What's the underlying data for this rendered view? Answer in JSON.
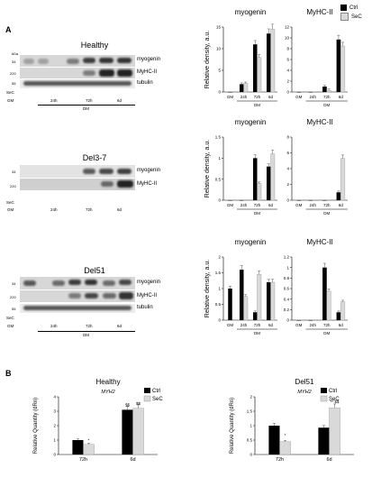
{
  "panel_a_label": "A",
  "panel_b_label": "B",
  "legend": {
    "ctrl": "Ctrl",
    "sec": "SeC"
  },
  "blots": [
    {
      "title": "Healthy",
      "kda": "kDa",
      "markers": [
        "34",
        "220",
        "55"
      ],
      "bands": [
        "myogenin",
        "MyHC-II",
        "tubulin"
      ],
      "sec_label": "SeC",
      "gm": "GM",
      "times": [
        "24h",
        "72h",
        "6d"
      ],
      "dm": "DM"
    },
    {
      "title": "Del3-7",
      "markers": [
        "34",
        "220"
      ],
      "bands": [
        "myogenin",
        "MyHC-II"
      ],
      "sec_label": "SeC",
      "gm": "GM",
      "times": [
        "24h",
        "72h",
        "6d"
      ]
    },
    {
      "title": "Del51",
      "markers": [
        "34",
        "220",
        "55"
      ],
      "bands": [
        "myogenin",
        "MyHC-II",
        "tubulin"
      ],
      "sec_label": "SeC",
      "gm": "GM",
      "times": [
        "24h",
        "72h",
        "6d"
      ],
      "dm": "DM"
    }
  ],
  "chart_data": [
    {
      "type": "bar",
      "title": "myogenin",
      "ylabel": "Relative density, a.u.",
      "ylim": [
        0,
        15
      ],
      "yticks": [
        "0",
        "5",
        "10",
        "15"
      ],
      "categories": [
        "GM",
        "24h",
        "72h",
        "6d"
      ],
      "xgroup": "DM",
      "series": [
        {
          "name": "Ctrl",
          "values": [
            0,
            1.8,
            11,
            13.5
          ]
        },
        {
          "name": "SeC",
          "values": [
            null,
            2,
            8,
            14.5
          ]
        }
      ]
    },
    {
      "type": "bar",
      "title": "MyHC-II",
      "ylim": [
        0,
        12
      ],
      "yticks": [
        "0",
        "2",
        "4",
        "6",
        "8",
        "10",
        "12"
      ],
      "categories": [
        "GM",
        "24h",
        "72h",
        "6d"
      ],
      "xgroup": "DM",
      "series": [
        {
          "name": "Ctrl",
          "values": [
            0,
            0,
            1,
            9.7
          ]
        },
        {
          "name": "SeC",
          "values": [
            null,
            0,
            0.3,
            8.5
          ]
        }
      ]
    },
    {
      "type": "bar",
      "title": "myogenin",
      "ylabel": "Relative density, a.u.",
      "ylim": [
        0,
        1.5
      ],
      "yticks": [
        "0",
        "0.5",
        "1",
        "1.5"
      ],
      "categories": [
        "GM",
        "24h",
        "72h",
        "6d"
      ],
      "xgroup": "DM",
      "series": [
        {
          "name": "Ctrl",
          "values": [
            0,
            0,
            1,
            0.8
          ]
        },
        {
          "name": "SeC",
          "values": [
            null,
            0,
            0.4,
            1.1
          ]
        }
      ]
    },
    {
      "type": "bar",
      "title": "MyHC-II",
      "ylim": [
        0,
        8
      ],
      "yticks": [
        "0",
        "2",
        "4",
        "6",
        "8"
      ],
      "categories": [
        "GM",
        "24h",
        "72h",
        "6d"
      ],
      "xgroup": "DM",
      "series": [
        {
          "name": "Ctrl",
          "values": [
            0,
            0,
            0,
            1
          ]
        },
        {
          "name": "SeC",
          "values": [
            null,
            0,
            0,
            5.3
          ]
        }
      ]
    },
    {
      "type": "bar",
      "title": "myogenin",
      "ylabel": "Relative density, a.u.",
      "ylim": [
        0,
        2
      ],
      "yticks": [
        "0",
        "0.5",
        "1",
        "1.5",
        "2"
      ],
      "categories": [
        "GM",
        "24h",
        "72h",
        "6d"
      ],
      "xgroup": "DM",
      "series": [
        {
          "name": "Ctrl",
          "values": [
            1,
            1.6,
            0.25,
            1.2
          ]
        },
        {
          "name": "SeC",
          "values": [
            null,
            0.75,
            1.45,
            1.2
          ]
        }
      ]
    },
    {
      "type": "bar",
      "title": "MyHC-II",
      "ylim": [
        0,
        1.2
      ],
      "yticks": [
        "0",
        "0.2",
        "0.4",
        "0.6",
        "0.8",
        "1",
        "1.2"
      ],
      "categories": [
        "GM",
        "24h",
        "72h",
        "6d"
      ],
      "xgroup": "DM",
      "series": [
        {
          "name": "Ctrl",
          "values": [
            0,
            0,
            1,
            0.15
          ]
        },
        {
          "name": "SeC",
          "values": [
            null,
            0,
            0.55,
            0.35
          ]
        }
      ]
    },
    {
      "type": "bar",
      "title": "Healthy",
      "subtitle": "MYH2",
      "ylabel": "Relative Quantity (dRn)",
      "ylim": [
        0,
        4
      ],
      "yticks": [
        "0",
        "1",
        "2",
        "3",
        "4"
      ],
      "categories": [
        "72h",
        "6d"
      ],
      "series": [
        {
          "name": "Ctrl",
          "values": [
            1,
            3.1
          ]
        },
        {
          "name": "SeC",
          "values": [
            0.7,
            3.2
          ]
        }
      ],
      "annotations": [
        "*",
        "$$",
        "$$"
      ]
    },
    {
      "type": "bar",
      "title": "Del51",
      "subtitle": "MYH2",
      "ylabel": "Relative Quantity (dRn)",
      "ylim": [
        0,
        2
      ],
      "yticks": [
        "0",
        "0.5",
        "1",
        "1.5",
        "2"
      ],
      "categories": [
        "72h",
        "6d"
      ],
      "series": [
        {
          "name": "Ctrl",
          "values": [
            1,
            0.93
          ]
        },
        {
          "name": "SeC",
          "values": [
            0.45,
            1.62
          ]
        }
      ],
      "annotations": [
        "*",
        "** $$"
      ]
    }
  ]
}
